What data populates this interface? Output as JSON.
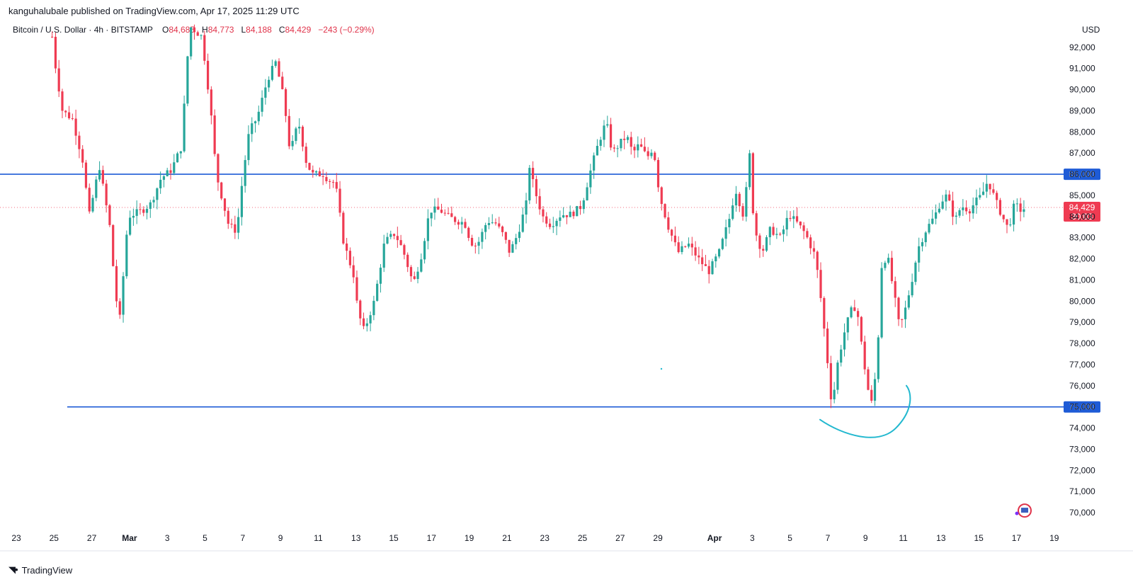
{
  "header": {
    "published_line": "kanguhalubale published on TradingView.com, Apr 17, 2025 11:29 UTC",
    "symbol_line": "Bitcoin / U.S. Dollar · 4h · BITSTAMP",
    "open_label": "O",
    "open_value": "84,685",
    "high_label": "H",
    "high_value": "84,773",
    "low_label": "L",
    "low_value": "84,188",
    "close_label": "C",
    "close_value": "84,429",
    "change": "−243 (−0.29%)",
    "currency": "USD"
  },
  "footer": {
    "brand": "TradingView"
  },
  "colors": {
    "up": "#26a69a",
    "down": "#ef3b52",
    "level_line": "#1e5bd6",
    "annotation": "#22b8cf",
    "axis_text": "#131722"
  },
  "chart_data": {
    "type": "candlestick",
    "title": "Bitcoin / U.S. Dollar · 4h · BITSTAMP",
    "ylim": [
      69300,
      93300
    ],
    "y_ticks": [
      70000,
      71000,
      72000,
      73000,
      74000,
      75000,
      76000,
      77000,
      78000,
      79000,
      80000,
      81000,
      82000,
      83000,
      84000,
      85000,
      86000,
      87000,
      88000,
      89000,
      90000,
      91000,
      92000
    ],
    "y_tick_labels": [
      "70,000",
      "71,000",
      "72,000",
      "73,000",
      "74,000",
      "75,000",
      "76,000",
      "77,000",
      "78,000",
      "79,000",
      "80,000",
      "81,000",
      "82,000",
      "83,000",
      "84,000",
      "85,000",
      "86,000",
      "87,000",
      "88,000",
      "89,000",
      "90,000",
      "91,000",
      "92,000"
    ],
    "x_ticks": [
      {
        "day": 0,
        "label": "23"
      },
      {
        "day": 2,
        "label": "25"
      },
      {
        "day": 4,
        "label": "27"
      },
      {
        "day": 6,
        "label": "Mar",
        "bold": true
      },
      {
        "day": 8,
        "label": "3"
      },
      {
        "day": 10,
        "label": "5"
      },
      {
        "day": 12,
        "label": "7"
      },
      {
        "day": 14,
        "label": "9"
      },
      {
        "day": 16,
        "label": "11"
      },
      {
        "day": 18,
        "label": "13"
      },
      {
        "day": 20,
        "label": "15"
      },
      {
        "day": 22,
        "label": "17"
      },
      {
        "day": 24,
        "label": "19"
      },
      {
        "day": 26,
        "label": "21"
      },
      {
        "day": 28,
        "label": "23"
      },
      {
        "day": 30,
        "label": "25"
      },
      {
        "day": 32,
        "label": "27"
      },
      {
        "day": 34,
        "label": "29"
      },
      {
        "day": 37,
        "label": "Apr",
        "bold": true
      },
      {
        "day": 39,
        "label": "3"
      },
      {
        "day": 41,
        "label": "5"
      },
      {
        "day": 43,
        "label": "7"
      },
      {
        "day": 45,
        "label": "9"
      },
      {
        "day": 47,
        "label": "11"
      },
      {
        "day": 49,
        "label": "13"
      },
      {
        "day": 51,
        "label": "15"
      },
      {
        "day": 53,
        "label": "17"
      },
      {
        "day": 55,
        "label": "19"
      }
    ],
    "x_range_days": [
      0,
      55
    ],
    "bars_per_day": 6,
    "first_bar_day": 1.9,
    "anchors": [
      [
        25,
        92500
      ],
      [
        25.1,
        91500
      ],
      [
        25.5,
        89000
      ],
      [
        26,
        88600
      ],
      [
        26.5,
        86600
      ],
      [
        26.8,
        84000
      ],
      [
        27.3,
        86400
      ],
      [
        27.8,
        83600
      ],
      [
        28.1,
        80200
      ],
      [
        28.3,
        79200
      ],
      [
        28.7,
        84000
      ],
      [
        29.4,
        84300
      ],
      [
        29.8,
        84600
      ],
      [
        30.3,
        85800
      ],
      [
        30.8,
        86200
      ],
      [
        31.3,
        87300
      ],
      [
        31.7,
        93000
      ],
      [
        32.3,
        92500
      ],
      [
        32.7,
        89300
      ],
      [
        33,
        86000
      ],
      [
        33.6,
        83600
      ],
      [
        34,
        83300
      ],
      [
        34.3,
        86000
      ],
      [
        34.6,
        88000
      ],
      [
        35,
        88700
      ],
      [
        35.5,
        90500
      ],
      [
        35.9,
        91300
      ],
      [
        36.3,
        89500
      ],
      [
        36.6,
        87000
      ],
      [
        37,
        88500
      ],
      [
        37.4,
        86500
      ],
      [
        37.7,
        86000
      ],
      [
        38.2,
        86000
      ],
      [
        38.5,
        85700
      ],
      [
        38.8,
        85600
      ],
      [
        39.2,
        82800
      ],
      [
        39.7,
        81200
      ],
      [
        39.9,
        79500
      ],
      [
        40.2,
        78600
      ],
      [
        40.7,
        80000
      ],
      [
        41.2,
        82800
      ],
      [
        41.7,
        83200
      ],
      [
        42.1,
        82400
      ],
      [
        42.6,
        80800
      ],
      [
        43,
        82200
      ],
      [
        43.4,
        84300
      ],
      [
        43.9,
        84300
      ],
      [
        44.3,
        84000
      ],
      [
        44.7,
        83800
      ],
      [
        45.1,
        83700
      ],
      [
        45.4,
        82800
      ],
      [
        45.7,
        82600
      ],
      [
        46.2,
        83800
      ],
      [
        46.6,
        83700
      ],
      [
        47,
        83100
      ],
      [
        47.3,
        82300
      ],
      [
        47.7,
        83200
      ],
      [
        48.1,
        84600
      ],
      [
        48.2,
        86700
      ],
      [
        48.5,
        85300
      ],
      [
        48.9,
        84000
      ],
      [
        49.3,
        83600
      ],
      [
        49.8,
        84100
      ],
      [
        50.3,
        84100
      ],
      [
        50.8,
        84500
      ],
      [
        51.3,
        86400
      ],
      [
        51.6,
        87400
      ],
      [
        52,
        88500
      ],
      [
        52.3,
        87000
      ],
      [
        52.7,
        87500
      ],
      [
        53,
        87800
      ],
      [
        53.3,
        87000
      ],
      [
        53.6,
        87400
      ],
      [
        54,
        86800
      ],
      [
        54.3,
        87300
      ],
      [
        54.6,
        85000
      ],
      [
        55,
        83600
      ],
      [
        55.5,
        82300
      ],
      [
        56,
        82700
      ],
      [
        56.5,
        82000
      ],
      [
        57,
        81400
      ],
      [
        57.5,
        82300
      ],
      [
        58,
        83900
      ],
      [
        58.3,
        85300
      ],
      [
        58.7,
        84000
      ],
      [
        59,
        87000
      ],
      [
        59.2,
        83500
      ],
      [
        59.6,
        82300
      ],
      [
        60,
        83400
      ],
      [
        60.5,
        83000
      ],
      [
        60.9,
        84100
      ],
      [
        61.3,
        83700
      ],
      [
        61.7,
        83200
      ],
      [
        62.2,
        82100
      ],
      [
        62.5,
        79800
      ],
      [
        62.8,
        77000
      ],
      [
        63,
        75000
      ],
      [
        63.3,
        77200
      ],
      [
        63.6,
        78500
      ],
      [
        63.9,
        79500
      ],
      [
        64.2,
        79800
      ],
      [
        64.5,
        77500
      ],
      [
        64.7,
        76200
      ],
      [
        64.9,
        75000
      ],
      [
        65.2,
        77000
      ],
      [
        65.4,
        81600
      ],
      [
        65.7,
        82200
      ],
      [
        66,
        80500
      ],
      [
        66.3,
        78700
      ],
      [
        66.6,
        79700
      ],
      [
        66.9,
        81000
      ],
      [
        67.2,
        82500
      ],
      [
        67.6,
        83400
      ],
      [
        68,
        84000
      ],
      [
        68.3,
        84700
      ],
      [
        68.6,
        85000
      ],
      [
        69,
        83800
      ],
      [
        69.3,
        84500
      ],
      [
        69.7,
        84300
      ],
      [
        70,
        84700
      ],
      [
        70.3,
        85000
      ],
      [
        70.6,
        85700
      ],
      [
        71,
        84700
      ],
      [
        71.3,
        84000
      ],
      [
        71.6,
        83400
      ],
      [
        71.9,
        84600
      ],
      [
        72.2,
        84300
      ],
      [
        72.5,
        84429
      ]
    ],
    "last_bar_day_index": 4.1,
    "horizontal_levels": [
      {
        "value": 86000,
        "label": "86,000",
        "from_day": -1
      },
      {
        "value": 75000,
        "label": "75,000",
        "from_day": 2.7
      }
    ],
    "last_price": {
      "value": 84429,
      "label": "84,429",
      "countdown": "30:03"
    }
  }
}
